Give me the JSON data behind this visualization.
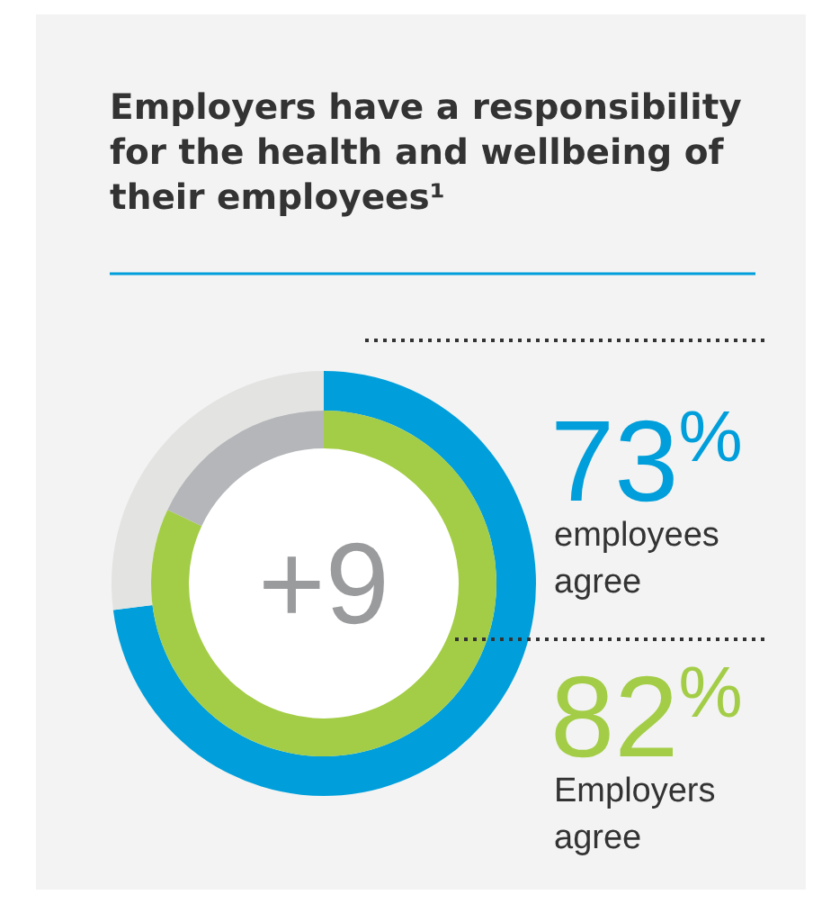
{
  "chart_data": [
    {
      "type": "donut",
      "title": "Employers have a responsibility for the health and wellbeing of their employees¹",
      "categories": [
        "employees agree",
        null
      ],
      "values": [
        73,
        27
      ],
      "colors": [
        "#009fdb",
        "#e3e4e2"
      ],
      "value_labels": [
        "73$^{%}$",
        null
      ],
      "annotations": [
        "+9"
      ]
    },
    {
      "type": "donut",
      "categories": [
        "Employers agree",
        null
      ],
      "values": [
        82,
        18
      ],
      "colors": [
        "#a3cd46",
        "#b4b6b9"
      ],
      "value_labels": [
        "82$^{%}$",
        null
      ]
    }
  ]
}
